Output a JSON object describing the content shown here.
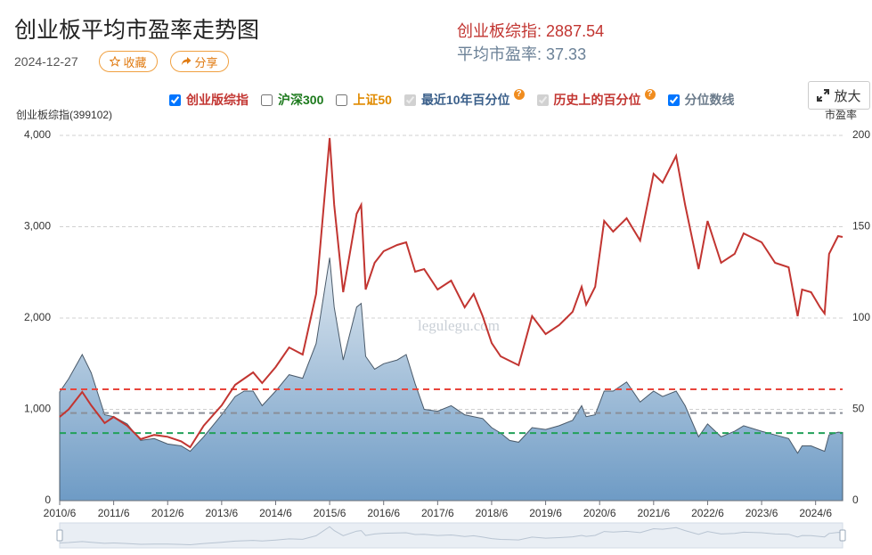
{
  "header": {
    "title": "创业板平均市盈率走势图",
    "date": "2024-12-27",
    "buttons": [
      "收藏",
      "分享"
    ],
    "zoom": "放大",
    "stats": [
      {
        "label": "创业板综指:",
        "value": 2887.54,
        "color": "#c23531"
      },
      {
        "label": "平均市盈率:",
        "value": 37.33,
        "color": "#6b8197"
      }
    ]
  },
  "legend": [
    {
      "label": "创业版综指",
      "checked": true,
      "disabled": false,
      "color": "#c23531"
    },
    {
      "label": "沪深300",
      "checked": false,
      "disabled": false,
      "color": "#1d7a1d"
    },
    {
      "label": "上证50",
      "checked": false,
      "disabled": false,
      "color": "#e08a00"
    },
    {
      "label": "最近10年百分位",
      "checked": true,
      "disabled": true,
      "color": "#3a5f8a",
      "help": "?"
    },
    {
      "label": "历史上的百分位",
      "checked": true,
      "disabled": true,
      "color": "#c23531",
      "help": "?"
    },
    {
      "label": "分位数线",
      "checked": true,
      "disabled": false,
      "color": "#6b7b8b"
    }
  ],
  "chart_data": {
    "type": "line",
    "watermark": "legulegu.com",
    "y_label": "创业板综指(399102)",
    "y2_label": "市盈率",
    "x": [
      "2010/6",
      "2010/8",
      "2010/11",
      "2011/1",
      "2011/4",
      "2011/6",
      "2011/9",
      "2011/12",
      "2012/3",
      "2012/6",
      "2012/9",
      "2012/11",
      "2013/2",
      "2013/6",
      "2013/9",
      "2013/11",
      "2014/1",
      "2014/3",
      "2014/6",
      "2014/9",
      "2014/12",
      "2015/3",
      "2015/6",
      "2015/7",
      "2015/9",
      "2015/12",
      "2016/1",
      "2016/2",
      "2016/4",
      "2016/6",
      "2016/9",
      "2016/11",
      "2017/1",
      "2017/3",
      "2017/6",
      "2017/9",
      "2017/12",
      "2018/2",
      "2018/4",
      "2018/6",
      "2018/8",
      "2018/10",
      "2018/12",
      "2019/3",
      "2019/6",
      "2019/9",
      "2019/12",
      "2020/2",
      "2020/3",
      "2020/5",
      "2020/7",
      "2020/9",
      "2020/12",
      "2021/3",
      "2021/6",
      "2021/8",
      "2021/11",
      "2022/1",
      "2022/4",
      "2022/6",
      "2022/9",
      "2022/12",
      "2023/2",
      "2023/6",
      "2023/9",
      "2023/12",
      "2024/2",
      "2024/3",
      "2024/5",
      "2024/7",
      "2024/8",
      "2024/9",
      "2024/11",
      "2024/12"
    ],
    "xlim": [
      "2010/6",
      "2024/12"
    ],
    "xticks": [
      "2010/6",
      "2011/6",
      "2012/6",
      "2013/6",
      "2014/6",
      "2015/6",
      "2016/6",
      "2017/6",
      "2018/6",
      "2019/6",
      "2020/6",
      "2021/6",
      "2022/6",
      "2023/6",
      "2024/6"
    ],
    "ylim": [
      0,
      4000
    ],
    "yticks": [
      0,
      {
        "value": 1000,
        "label": "1,000"
      },
      {
        "value": 2000,
        "label": "2,000"
      },
      {
        "value": 3000,
        "label": "3,000"
      },
      {
        "value": 4000,
        "label": "4,000"
      }
    ],
    "y2lim": [
      0,
      200
    ],
    "y2ticks": [
      0,
      50,
      100,
      150,
      200
    ],
    "grid": true,
    "series": [
      {
        "name": "创业版综指",
        "color": "#c23531",
        "values": [
          917,
          1000,
          1190,
          1044,
          850,
          917,
          820,
          673,
          720,
          700,
          650,
          585,
          820,
          1044,
          1268,
          1337,
          1405,
          1288,
          1463,
          1678,
          1600,
          2263,
          3971,
          3239,
          2283,
          3141,
          3239,
          2312,
          2605,
          2732,
          2800,
          2829,
          2507,
          2536,
          2312,
          2410,
          2117,
          2263,
          2020,
          1727,
          1580,
          1532,
          1483,
          2020,
          1824,
          1922,
          2068,
          2341,
          2146,
          2341,
          3063,
          2946,
          3093,
          2849,
          3580,
          3483,
          3776,
          3239,
          2536,
          3063,
          2605,
          2702,
          2927,
          2829,
          2605,
          2556,
          2020,
          2312,
          2283,
          2117,
          2049,
          2702,
          2898,
          2887.54
        ]
      },
      {
        "name": "平均市盈率",
        "axis": "y2",
        "style": "area",
        "color": "#4a5a6a",
        "values": [
          59.5,
          66.8,
          80,
          70,
          47,
          46,
          42,
          33,
          34,
          31,
          30,
          27,
          35,
          47,
          57,
          60,
          60,
          52,
          60,
          69,
          67,
          86,
          133,
          106,
          77,
          106,
          108,
          79,
          72,
          75,
          77,
          80,
          64,
          50,
          49,
          52,
          47,
          46,
          45,
          40,
          37,
          33,
          32,
          40,
          39,
          41,
          44,
          52,
          46,
          47,
          60,
          60,
          65,
          54,
          60,
          57,
          60,
          52,
          35,
          42,
          35,
          38,
          41,
          38,
          36,
          34,
          26,
          30,
          30,
          28,
          27,
          36,
          37.5,
          37.33
        ]
      }
    ],
    "reference_lines": [
      {
        "axis": "y2",
        "value": 61,
        "color": "#e8453c"
      },
      {
        "axis": "y2",
        "value": 48,
        "color": "#8a8f99"
      },
      {
        "axis": "y2",
        "value": 37,
        "color": "#22a05a"
      }
    ]
  }
}
